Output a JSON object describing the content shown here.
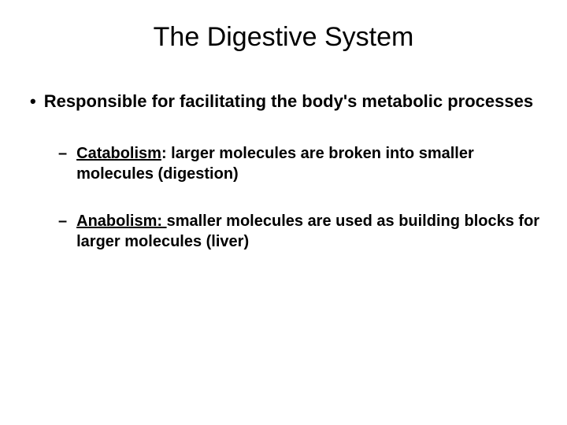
{
  "slide": {
    "title": "The Digestive System",
    "background_color": "#ffffff",
    "text_color": "#000000",
    "title_fontsize": 34,
    "body_fontsize": 22,
    "sub_fontsize": 20,
    "main_bullet": {
      "marker": "•",
      "text": "Responsible for facilitating the body's metabolic processes"
    },
    "sub_bullets": [
      {
        "marker": "–",
        "term": "Catabolism",
        "colon": ": ",
        "definition": "larger molecules are broken into smaller molecules (digestion)"
      },
      {
        "marker": "–",
        "term": "Anabolism: ",
        "colon": "",
        "definition": "smaller molecules are used as building blocks for larger molecules (liver)"
      }
    ]
  }
}
